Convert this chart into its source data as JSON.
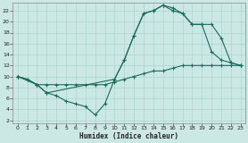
{
  "xlabel": "Humidex (Indice chaleur)",
  "bg_color": "#cce8e5",
  "grid_color": "#aad4cc",
  "line_color": "#1a6b5a",
  "xlim": [
    -0.5,
    23.5
  ],
  "ylim": [
    1.5,
    23.5
  ],
  "xticks": [
    0,
    1,
    2,
    3,
    4,
    5,
    6,
    7,
    8,
    9,
    10,
    11,
    12,
    13,
    14,
    15,
    16,
    17,
    18,
    19,
    20,
    21,
    22,
    23
  ],
  "yticks": [
    2,
    4,
    6,
    8,
    10,
    12,
    14,
    16,
    18,
    20,
    22
  ],
  "line1_x": [
    0,
    1,
    2,
    3,
    4,
    5,
    6,
    7,
    8,
    9,
    10,
    11,
    12,
    13,
    14,
    15,
    16,
    17,
    18,
    19,
    20,
    21,
    22,
    23
  ],
  "line1_y": [
    10,
    9.5,
    8.5,
    8.5,
    8.5,
    8.5,
    8.5,
    8.5,
    8.5,
    8.5,
    9.0,
    9.5,
    10.0,
    10.5,
    11.0,
    11.0,
    11.5,
    12.0,
    12.0,
    12.0,
    12.0,
    12.0,
    12.0,
    12.0
  ],
  "line2_x": [
    0,
    1,
    2,
    3,
    4,
    5,
    6,
    7,
    8,
    9,
    10,
    11,
    12,
    13,
    14,
    15,
    16,
    17,
    18,
    19,
    20,
    21,
    22,
    23
  ],
  "line2_y": [
    10,
    9.5,
    8.5,
    7.0,
    6.5,
    5.5,
    5.0,
    4.5,
    3.0,
    5.0,
    9.5,
    13.0,
    17.5,
    21.5,
    22.0,
    23.0,
    22.5,
    21.5,
    19.5,
    19.5,
    14.5,
    13.0,
    12.5,
    12.0
  ],
  "line3_x": [
    0,
    2,
    3,
    10,
    11,
    12,
    13,
    14,
    15,
    16,
    17,
    18,
    19,
    20,
    21,
    22,
    23
  ],
  "line3_y": [
    10,
    8.5,
    7.0,
    9.5,
    13.0,
    17.5,
    21.5,
    22.0,
    23.0,
    22.0,
    21.5,
    19.5,
    19.5,
    19.5,
    17.0,
    12.5,
    12.0
  ]
}
